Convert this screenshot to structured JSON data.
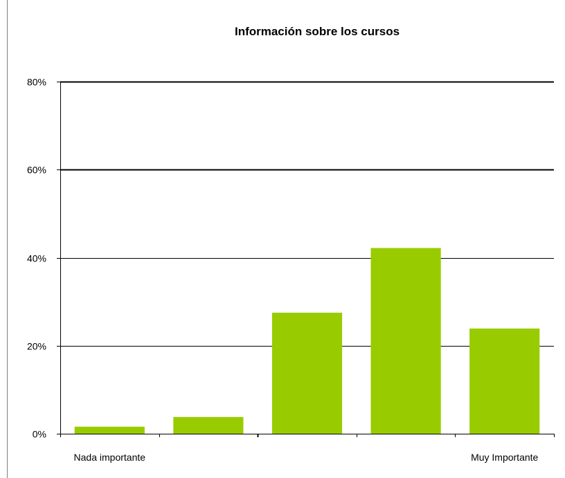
{
  "chart_data": {
    "type": "bar",
    "title": "Información sobre los cursos",
    "categories": [
      "Nada importante",
      "",
      "",
      "",
      "Muy Importante"
    ],
    "values": [
      1.6,
      3.8,
      27.5,
      42.2,
      23.9
    ],
    "value_unit": "%",
    "ylim": [
      0,
      80
    ],
    "y_ticks": [
      "0%",
      "20%",
      "40%",
      "60%",
      "80%"
    ],
    "grid": true,
    "legend": "none",
    "bar_color": "#99cc00",
    "axis_color": "#000000"
  }
}
